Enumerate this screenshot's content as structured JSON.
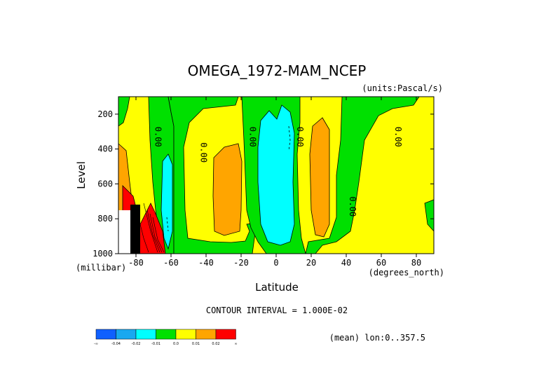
{
  "chart_data": {
    "type": "contour",
    "title": "OMEGA_1972-MAM_NCEP",
    "units_label": "(units:Pascal/s)",
    "xlabel": "Latitude",
    "xunit_label": "(degrees_north)",
    "ylabel": "Level",
    "yunit_label": "(millibar)",
    "x_ticks": [
      "-80",
      "-60",
      "-40",
      "-20",
      "0",
      "20",
      "40",
      "60",
      "80"
    ],
    "x_tick_values": [
      -80,
      -60,
      -40,
      -20,
      0,
      20,
      40,
      60,
      80
    ],
    "y_ticks": [
      "200",
      "400",
      "600",
      "800",
      "1000"
    ],
    "y_tick_values": [
      200,
      400,
      600,
      800,
      1000
    ],
    "xlim": [
      -90,
      90
    ],
    "ylim": [
      1000,
      100
    ],
    "contour_interval_text": "CONTOUR INTERVAL = 1.000E-02",
    "contour_labels": [
      {
        "text": "0.00",
        "lat": -69,
        "lev": 330
      },
      {
        "text": "0.00",
        "lat": -43,
        "lev": 420
      },
      {
        "text": "0.00",
        "lat": -15,
        "lev": 330
      },
      {
        "text": "0.00",
        "lat": 12,
        "lev": 330
      },
      {
        "text": "0.00",
        "lat": 42,
        "lev": 730
      },
      {
        "text": "0.00",
        "lat": 68,
        "lev": 330
      }
    ],
    "colorbar": {
      "levels": [
        "-∞",
        "-0.04",
        "-0.02",
        "-0.01",
        "0.0",
        "0.01",
        "0.02",
        "∞"
      ],
      "colors": [
        "#1060ff",
        "#18a8f0",
        "#00ffff",
        "#00e000",
        "#ffff00",
        "#ffa500",
        "#ff0000"
      ]
    },
    "footnote": "(mean) lon:0..357.5"
  }
}
